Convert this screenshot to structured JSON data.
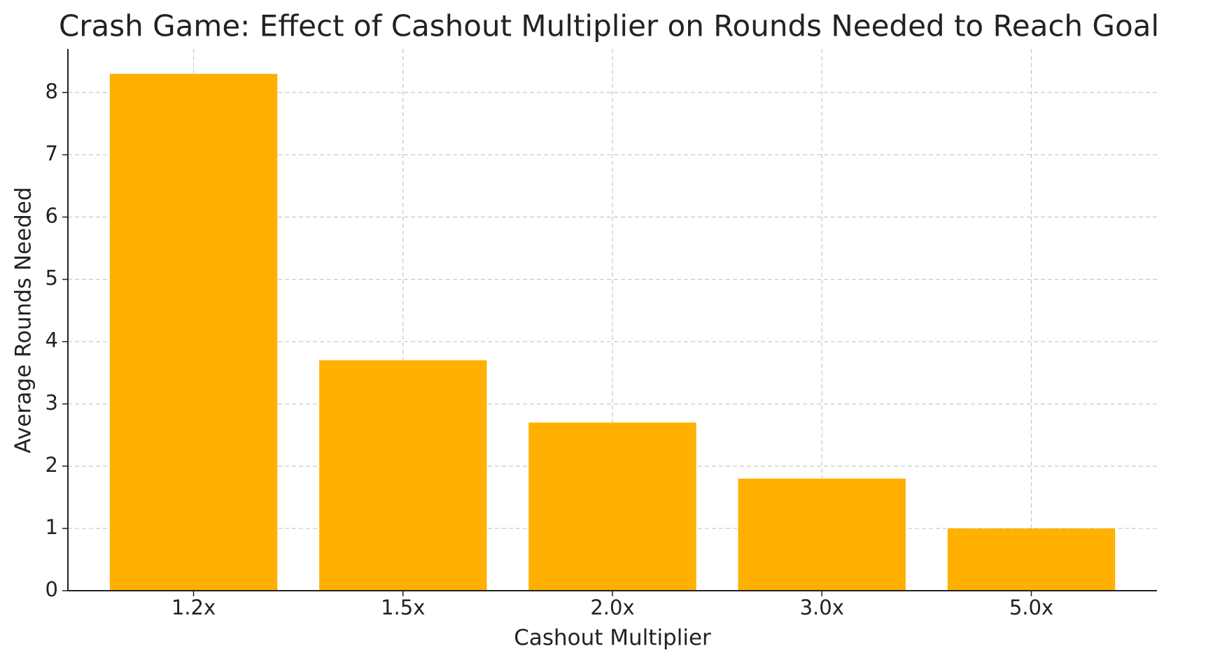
{
  "chart_data": {
    "type": "bar",
    "title": "Crash Game: Effect of Cashout Multiplier on Rounds Needed to Reach Goal",
    "x_label": "Cashout Multiplier",
    "y_label": "Average Rounds Needed",
    "categories": [
      "1.2x",
      "1.5x",
      "2.0x",
      "3.0x",
      "5.0x"
    ],
    "values": [
      8.3,
      3.7,
      2.7,
      1.8,
      1.0
    ],
    "color": "#ffb000",
    "ylim": [
      0,
      8.7
    ],
    "yticks": [
      0,
      1,
      2,
      3,
      4,
      5,
      6,
      7,
      8
    ],
    "grid": true
  }
}
